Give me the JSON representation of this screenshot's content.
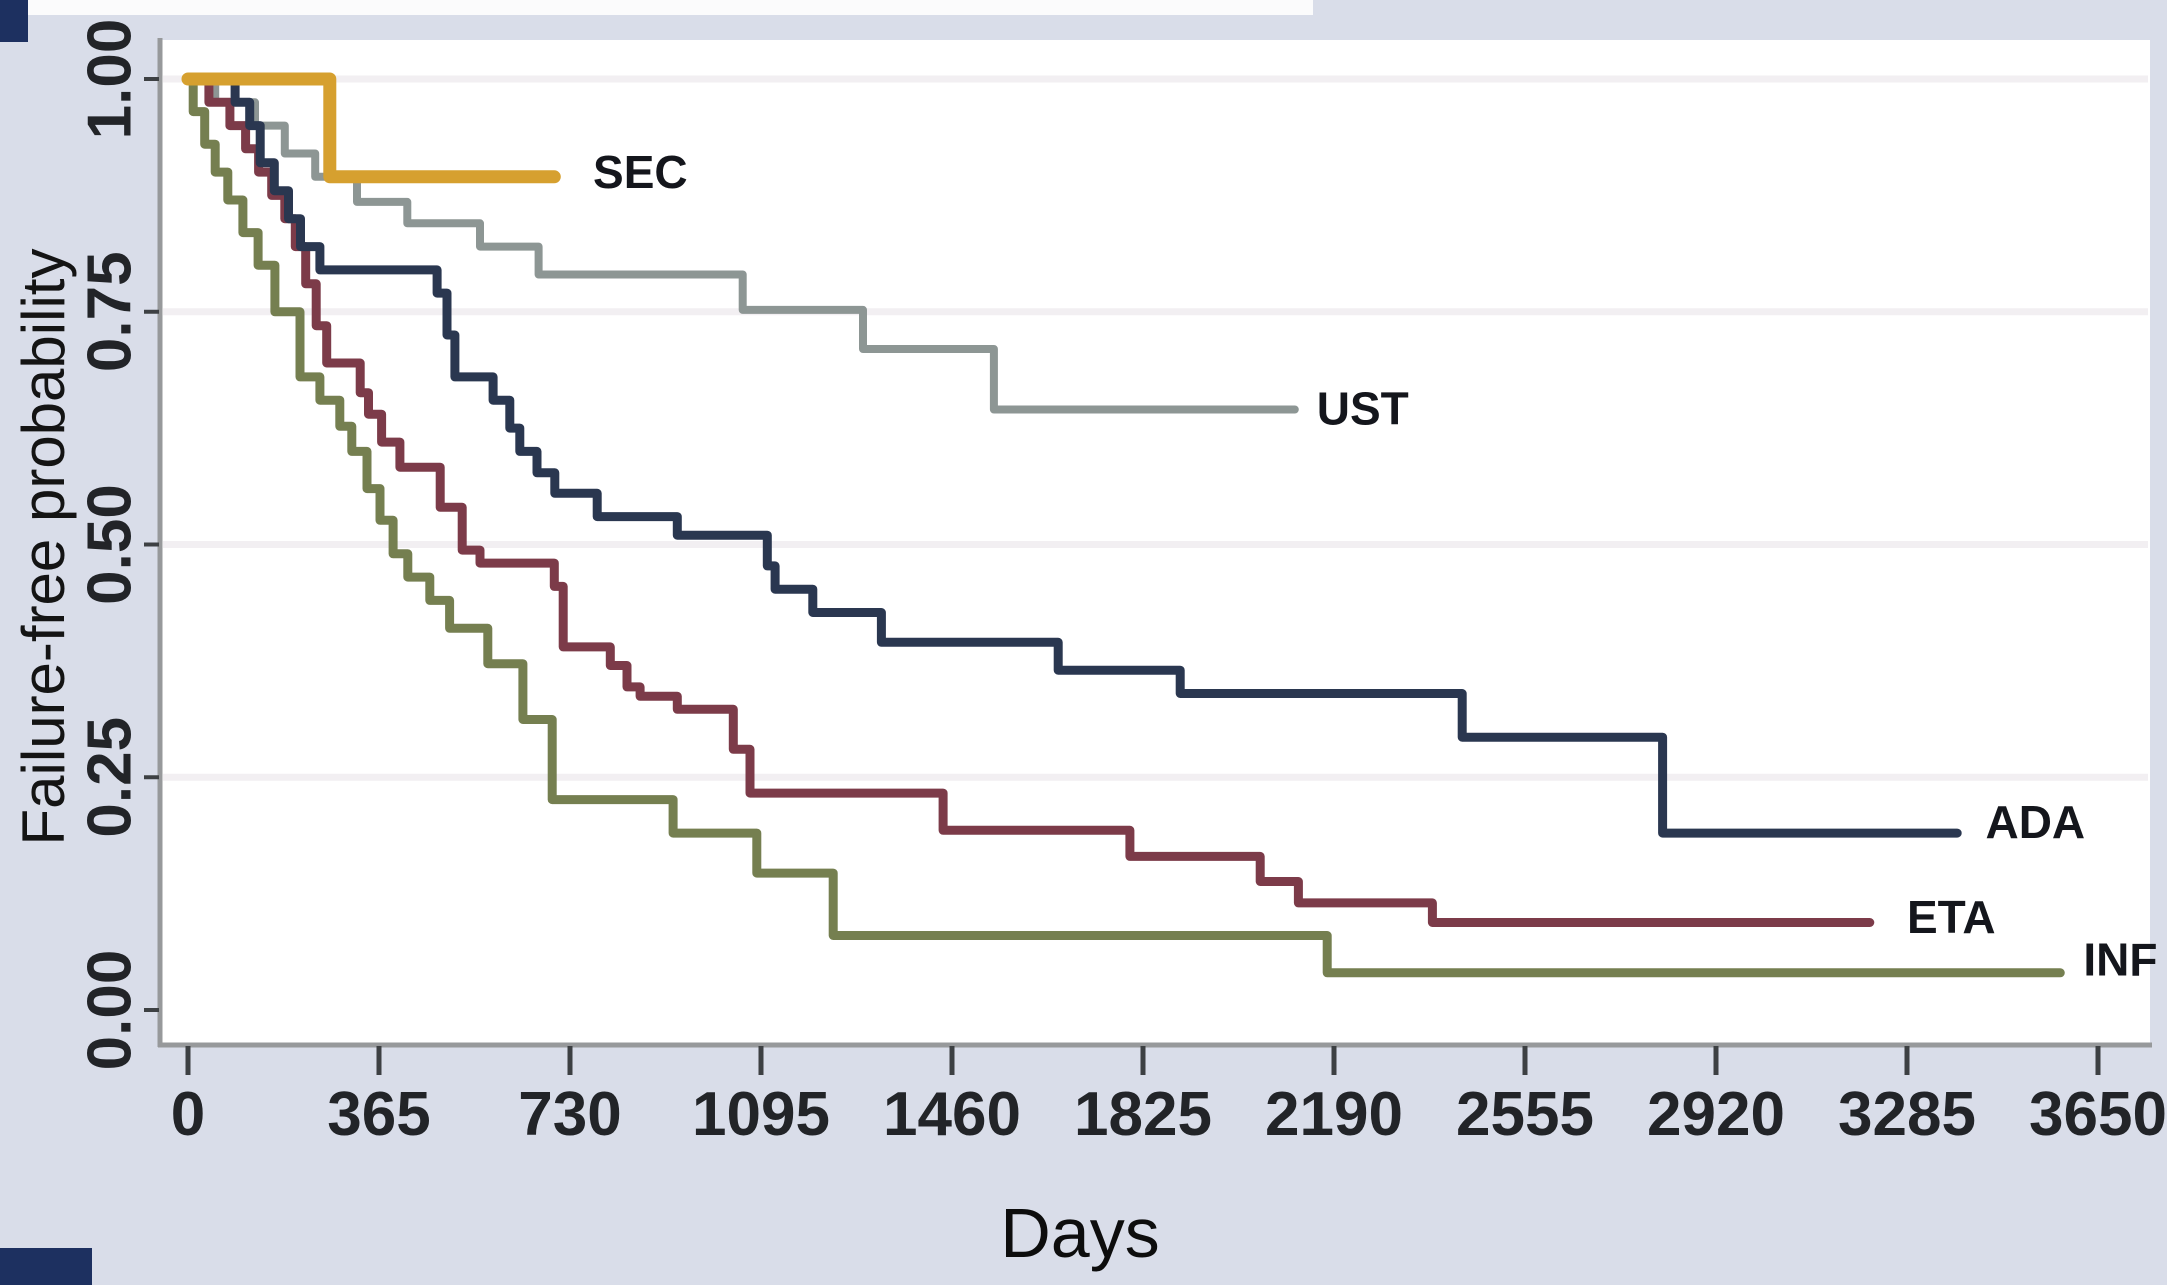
{
  "figure": {
    "background_color": "#d9dde9",
    "plot_background": "#ffffff",
    "axis_color": "#97999b",
    "tick_color": "#3d4043",
    "grid_color": "#f2eff2",
    "tick_text_color": "#222428",
    "label_text_color": "#14161c"
  },
  "chart_data": {
    "type": "line",
    "variant": "kaplan-meier-step-curves",
    "title": "",
    "xlabel": "Days",
    "ylabel": "Failure-free probability",
    "xlim": [
      0,
      3760
    ],
    "ylim": [
      0.0,
      1.04
    ],
    "grid": "horizontal-major-faint",
    "legend_position": "inline-labels-at-curve-ends",
    "x_ticks": [
      0,
      365,
      730,
      1095,
      1460,
      1825,
      2190,
      2555,
      2920,
      3285,
      3650
    ],
    "x_tick_labels": [
      "0",
      "365",
      "730",
      "1095",
      "1460",
      "1825",
      "2190",
      "2555",
      "2920",
      "3285",
      "3650"
    ],
    "y_ticks": [
      1.0,
      0.75,
      0.5,
      0.25,
      0.0
    ],
    "y_tick_labels": [
      "1.00",
      "0.75",
      "0.50",
      "0.25",
      "0.00"
    ],
    "series": [
      {
        "name": "UST",
        "color": "#8d9694",
        "line_width": 8,
        "label": {
          "day": 2157,
          "prob": 0.646
        },
        "end_day": 2115,
        "points": [
          [
            0,
            1.0
          ],
          [
            52,
            0.975
          ],
          [
            128,
            0.95
          ],
          [
            185,
            0.92
          ],
          [
            243,
            0.895
          ],
          [
            323,
            0.868
          ],
          [
            419,
            0.845
          ],
          [
            558,
            0.82
          ],
          [
            670,
            0.79
          ],
          [
            1060,
            0.752
          ],
          [
            1290,
            0.71
          ],
          [
            1540,
            0.645
          ]
        ]
      },
      {
        "name": "INF",
        "color": "#757f50",
        "line_width": 9,
        "label": {
          "day": 3622,
          "prob": 0.054
        },
        "end_day": 3578,
        "points": [
          [
            0,
            1.0
          ],
          [
            10,
            0.965
          ],
          [
            32,
            0.93
          ],
          [
            52,
            0.9
          ],
          [
            76,
            0.87
          ],
          [
            105,
            0.835
          ],
          [
            134,
            0.8
          ],
          [
            166,
            0.75
          ],
          [
            214,
            0.68
          ],
          [
            252,
            0.655
          ],
          [
            290,
            0.627
          ],
          [
            313,
            0.6
          ],
          [
            342,
            0.56
          ],
          [
            367,
            0.526
          ],
          [
            392,
            0.49
          ],
          [
            420,
            0.465
          ],
          [
            462,
            0.44
          ],
          [
            500,
            0.41
          ],
          [
            573,
            0.372
          ],
          [
            640,
            0.312
          ],
          [
            696,
            0.226
          ],
          [
            927,
            0.19
          ],
          [
            1087,
            0.147
          ],
          [
            1233,
            0.08
          ],
          [
            2177,
            0.04
          ]
        ]
      },
      {
        "name": "ETA",
        "color": "#7c3b49",
        "line_width": 9,
        "label": {
          "day": 3285,
          "prob": 0.1
        },
        "end_day": 3214,
        "points": [
          [
            0,
            1.0
          ],
          [
            40,
            0.975
          ],
          [
            80,
            0.95
          ],
          [
            110,
            0.925
          ],
          [
            135,
            0.9
          ],
          [
            160,
            0.875
          ],
          [
            185,
            0.85
          ],
          [
            205,
            0.82
          ],
          [
            225,
            0.78
          ],
          [
            245,
            0.735
          ],
          [
            265,
            0.695
          ],
          [
            329,
            0.663
          ],
          [
            345,
            0.64
          ],
          [
            370,
            0.61
          ],
          [
            405,
            0.583
          ],
          [
            482,
            0.54
          ],
          [
            524,
            0.494
          ],
          [
            558,
            0.48
          ],
          [
            700,
            0.455
          ],
          [
            717,
            0.39
          ],
          [
            807,
            0.37
          ],
          [
            839,
            0.347
          ],
          [
            864,
            0.337
          ],
          [
            935,
            0.323
          ],
          [
            1042,
            0.28
          ],
          [
            1074,
            0.233
          ],
          [
            1443,
            0.193
          ],
          [
            1800,
            0.165
          ],
          [
            2049,
            0.138
          ],
          [
            2122,
            0.115
          ],
          [
            2378,
            0.094
          ]
        ]
      },
      {
        "name": "ADA",
        "color": "#2a3750",
        "line_width": 9,
        "label": {
          "day": 3435,
          "prob": 0.202
        },
        "end_day": 3381,
        "points": [
          [
            0,
            1.0
          ],
          [
            90,
            0.975
          ],
          [
            118,
            0.95
          ],
          [
            138,
            0.91
          ],
          [
            165,
            0.88
          ],
          [
            192,
            0.85
          ],
          [
            215,
            0.82
          ],
          [
            252,
            0.795
          ],
          [
            476,
            0.77
          ],
          [
            495,
            0.725
          ],
          [
            510,
            0.68
          ],
          [
            583,
            0.655
          ],
          [
            615,
            0.625
          ],
          [
            634,
            0.6
          ],
          [
            667,
            0.577
          ],
          [
            701,
            0.555
          ],
          [
            782,
            0.53
          ],
          [
            935,
            0.51
          ],
          [
            1107,
            0.477
          ],
          [
            1122,
            0.452
          ],
          [
            1194,
            0.427
          ],
          [
            1325,
            0.395
          ],
          [
            1663,
            0.365
          ],
          [
            1896,
            0.34
          ],
          [
            2435,
            0.293
          ],
          [
            2818,
            0.19
          ]
        ]
      },
      {
        "name": "SEC",
        "color": "#d6a02f",
        "line_width": 13,
        "label": {
          "day": 774,
          "prob": 0.9
        },
        "end_day": 700,
        "points": [
          [
            0,
            1.0
          ],
          [
            271,
            0.895
          ]
        ]
      }
    ]
  }
}
